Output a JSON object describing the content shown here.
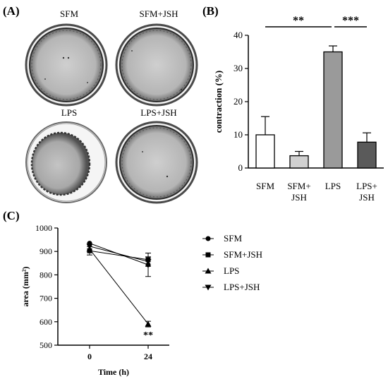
{
  "panels": {
    "a": "(A)",
    "b": "(B)",
    "c": "(C)"
  },
  "dishes": [
    {
      "label": "SFM",
      "condition": "normal"
    },
    {
      "label": "SFM+JSH",
      "condition": "normal"
    },
    {
      "label": "LPS",
      "condition": "contracted"
    },
    {
      "label": "LPS+JSH",
      "condition": "normal"
    }
  ],
  "chart_data": [
    {
      "type": "bar",
      "panel": "(B)",
      "categories": [
        "SFM",
        "SFM+\nJSH",
        "LPS",
        "LPS+\nJSH"
      ],
      "category_lines": [
        [
          "SFM"
        ],
        [
          "SFM+",
          "JSH"
        ],
        [
          "LPS"
        ],
        [
          "LPS+",
          "JSH"
        ]
      ],
      "values": [
        10.0,
        3.7,
        35.0,
        7.8
      ],
      "errors": [
        5.5,
        1.3,
        1.8,
        2.8
      ],
      "bar_colors": [
        "#ffffff",
        "#d0d0d0",
        "#9a9a9a",
        "#5a5a5a"
      ],
      "ylabel": "contraction (%)",
      "ylim": [
        0,
        40
      ],
      "yticks": [
        0,
        10,
        20,
        30,
        40
      ],
      "significance": [
        {
          "from": 0,
          "to": 2,
          "text": "**"
        },
        {
          "from": 2,
          "to": 3,
          "text": "***"
        }
      ]
    },
    {
      "type": "line",
      "panel": "(C)",
      "x": [
        0,
        24
      ],
      "xticks": [
        0,
        24
      ],
      "xlabel": "Time (h)",
      "ylabel": "area (mm²)",
      "ylim": [
        500,
        1000
      ],
      "yticks": [
        500,
        600,
        700,
        800,
        900,
        1000
      ],
      "series": [
        {
          "name": "SFM",
          "marker": "circle",
          "values": [
            935,
            843
          ],
          "errors": [
            0,
            50
          ]
        },
        {
          "name": "SFM+JSH",
          "marker": "square",
          "values": [
            903,
            865
          ],
          "errors": [
            18,
            28
          ]
        },
        {
          "name": "LPS",
          "marker": "triangle-up",
          "values": [
            910,
            590
          ],
          "errors": [
            0,
            12
          ]
        },
        {
          "name": "LPS+JSH",
          "marker": "triangle-down",
          "values": [
            922,
            857
          ],
          "errors": [
            0,
            20
          ]
        }
      ],
      "annotation": {
        "text": "**",
        "x": 24,
        "y": 560
      }
    }
  ]
}
